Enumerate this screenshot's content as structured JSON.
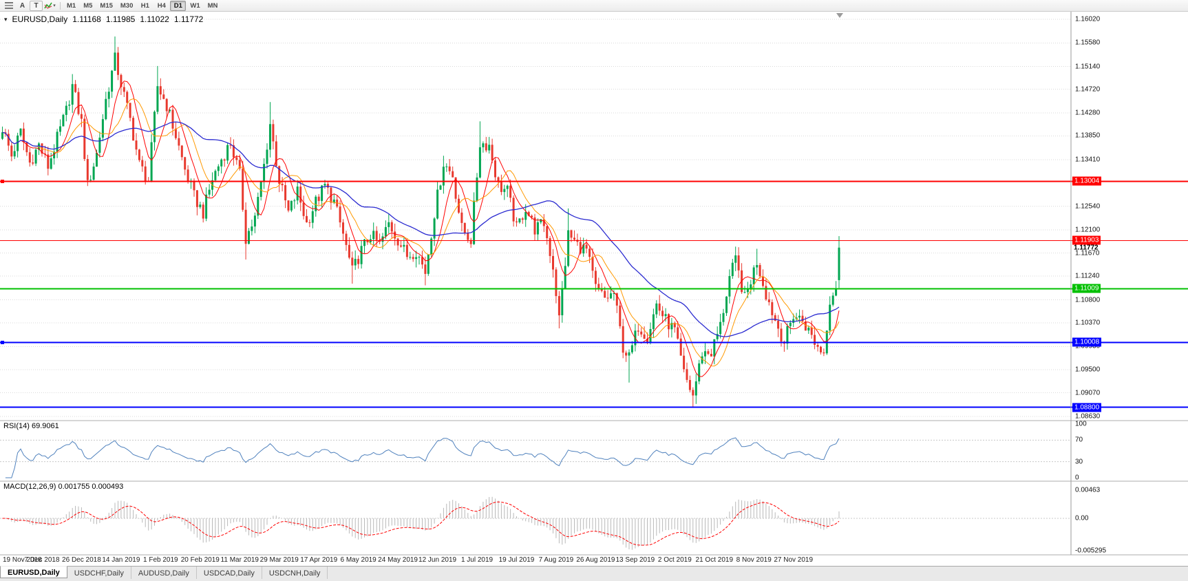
{
  "toolbar": {
    "a_button": "A",
    "t_button": "T",
    "timeframes": [
      "M1",
      "M5",
      "M15",
      "M30",
      "H1",
      "H4",
      "D1",
      "W1",
      "MN"
    ],
    "active_timeframe": "D1"
  },
  "chart": {
    "title": "EURUSD,Daily",
    "ohlc": {
      "open": "1.11168",
      "high": "1.11985",
      "low": "1.11022",
      "close": "1.11772"
    },
    "price_axis_labels": [
      "1.16020",
      "1.15580",
      "1.15140",
      "1.14720",
      "1.14280",
      "1.13850",
      "1.13410",
      "1.12540",
      "1.12100",
      "1.11670",
      "1.11240",
      "1.10800",
      "1.10370",
      "1.09930",
      "1.09500",
      "1.09070",
      "1.08630"
    ],
    "levels": [
      {
        "price": 1.13004,
        "label": "1.13004",
        "color": "#ff0000",
        "width": 2,
        "handle": true
      },
      {
        "price": 1.11903,
        "label": "1.11903",
        "color": "#ff0000",
        "width": 1,
        "handle": false
      },
      {
        "price": 1.11009,
        "label": "1.11009",
        "color": "#00c000",
        "width": 2,
        "handle": false
      },
      {
        "price": 1.10008,
        "label": "1.10008",
        "color": "#0000ff",
        "width": 2,
        "handle": true
      },
      {
        "price": 1.088,
        "label": "1.08800",
        "color": "#0000ff",
        "width": 2,
        "handle": false
      }
    ],
    "current_price": {
      "text": "1.11772",
      "price": 1.11772
    }
  },
  "chart_data": {
    "type": "candlestick",
    "symbol": "EURUSD",
    "timeframe": "Daily",
    "num_candles": 276,
    "label_step": 13,
    "x_labels": [
      "19 Nov 2018",
      "7 Dec 2018",
      "26 Dec 2018",
      "14 Jan 2019",
      "1 Feb 2019",
      "20 Feb 2019",
      "11 Mar 2019",
      "29 Mar 2019",
      "17 Apr 2019",
      "6 May 2019",
      "24 May 2019",
      "12 Jun 2019",
      "1 Jul 2019",
      "19 Jul 2019",
      "7 Aug 2019",
      "26 Aug 2019",
      "13 Sep 2019",
      "2 Oct 2019",
      "21 Oct 2019",
      "8 Nov 2019",
      "27 Nov 2019"
    ],
    "price_range": {
      "top": 1.1602,
      "bottom": 1.0863
    },
    "last_candle": {
      "open": 1.11168,
      "high": 1.11985,
      "low": 1.11022,
      "close": 1.11772
    },
    "anchors": [
      [
        0,
        1.14
      ],
      [
        3,
        1.1348
      ],
      [
        6,
        1.1392
      ],
      [
        9,
        1.1335
      ],
      [
        12,
        1.1368
      ],
      [
        15,
        1.1328
      ],
      [
        18,
        1.138
      ],
      [
        21,
        1.1432
      ],
      [
        23,
        1.1478
      ],
      [
        26,
        1.141
      ],
      [
        28,
        1.1292
      ],
      [
        31,
        1.1352
      ],
      [
        34,
        1.1452
      ],
      [
        37,
        1.1528
      ],
      [
        39,
        1.1482
      ],
      [
        42,
        1.1415
      ],
      [
        45,
        1.1332
      ],
      [
        48,
        1.1302
      ],
      [
        51,
        1.1478
      ],
      [
        54,
        1.1442
      ],
      [
        57,
        1.1385
      ],
      [
        60,
        1.1322
      ],
      [
        63,
        1.1272
      ],
      [
        66,
        1.1242
      ],
      [
        69,
        1.1305
      ],
      [
        72,
        1.1342
      ],
      [
        75,
        1.1372
      ],
      [
        78,
        1.1312
      ],
      [
        80,
        1.1195
      ],
      [
        83,
        1.1232
      ],
      [
        86,
        1.133
      ],
      [
        88,
        1.1408
      ],
      [
        91,
        1.1302
      ],
      [
        94,
        1.1242
      ],
      [
        97,
        1.1282
      ],
      [
        100,
        1.1222
      ],
      [
        103,
        1.1262
      ],
      [
        106,
        1.1292
      ],
      [
        109,
        1.1262
      ],
      [
        112,
        1.1202
      ],
      [
        115,
        1.1132
      ],
      [
        118,
        1.1172
      ],
      [
        121,
        1.1202
      ],
      [
        124,
        1.1182
      ],
      [
        127,
        1.1222
      ],
      [
        130,
        1.1192
      ],
      [
        133,
        1.1162
      ],
      [
        136,
        1.1172
      ],
      [
        139,
        1.1132
      ],
      [
        142,
        1.1242
      ],
      [
        145,
        1.1335
      ],
      [
        148,
        1.1312
      ],
      [
        151,
        1.1212
      ],
      [
        154,
        1.1192
      ],
      [
        157,
        1.1372
      ],
      [
        160,
        1.1368
      ],
      [
        163,
        1.1292
      ],
      [
        166,
        1.1282
      ],
      [
        169,
        1.1212
      ],
      [
        172,
        1.1252
      ],
      [
        175,
        1.1212
      ],
      [
        178,
        1.1222
      ],
      [
        181,
        1.1142
      ],
      [
        183,
        1.1045
      ],
      [
        186,
        1.1202
      ],
      [
        189,
        1.1182
      ],
      [
        192,
        1.1172
      ],
      [
        195,
        1.1102
      ],
      [
        198,
        1.1082
      ],
      [
        201,
        1.1092
      ],
      [
        204,
        1.0992
      ],
      [
        206,
        1.0972
      ],
      [
        209,
        1.1032
      ],
      [
        212,
        1.1012
      ],
      [
        215,
        1.1072
      ],
      [
        218,
        1.1042
      ],
      [
        221,
        1.1022
      ],
      [
        224,
        1.0942
      ],
      [
        227,
        1.0902
      ],
      [
        230,
        1.0982
      ],
      [
        233,
        1.0982
      ],
      [
        236,
        1.1032
      ],
      [
        239,
        1.1122
      ],
      [
        241,
        1.1152
      ],
      [
        244,
        1.1082
      ],
      [
        248,
        1.1152
      ],
      [
        251,
        1.1092
      ],
      [
        254,
        1.1042
      ],
      [
        257,
        1.1002
      ],
      [
        260,
        1.1052
      ],
      [
        263,
        1.1042
      ],
      [
        266,
        1.1012
      ],
      [
        268,
        1.0992
      ],
      [
        270,
        1.0982
      ],
      [
        272,
        1.1082
      ],
      [
        274,
        1.1105
      ],
      [
        275,
        1.1177
      ]
    ],
    "spikes": [
      {
        "i": 23,
        "high": 1.15
      },
      {
        "i": 37,
        "high": 1.157
      },
      {
        "i": 51,
        "high": 1.1515
      },
      {
        "i": 80,
        "low": 1.1155
      },
      {
        "i": 88,
        "high": 1.1448
      },
      {
        "i": 115,
        "low": 1.111
      },
      {
        "i": 139,
        "low": 1.1107
      },
      {
        "i": 145,
        "high": 1.1348
      },
      {
        "i": 157,
        "high": 1.1412
      },
      {
        "i": 183,
        "low": 1.1027
      },
      {
        "i": 186,
        "high": 1.125
      },
      {
        "i": 206,
        "low": 1.0926
      },
      {
        "i": 227,
        "low": 1.0879
      },
      {
        "i": 241,
        "high": 1.1179
      },
      {
        "i": 248,
        "high": 1.1175
      },
      {
        "i": 257,
        "low": 1.0989
      },
      {
        "i": 270,
        "low": 1.0981
      }
    ],
    "colors": {
      "up": "#00a651",
      "down": "#e8392e",
      "grid": "#d9d9d9"
    },
    "moving_averages": [
      {
        "period": 7,
        "color": "#ff0000",
        "width": 1
      },
      {
        "period": 12,
        "color": "#ff9900",
        "width": 1
      },
      {
        "period": 40,
        "color": "#2a2ad0",
        "width": 1.3
      }
    ]
  },
  "rsi": {
    "label": "RSI(14) 69.9061",
    "period": 14,
    "value": "69.9061",
    "color": "#4f81bd",
    "axis_labels": [
      {
        "v": 100,
        "t": "100"
      },
      {
        "v": 70,
        "t": "70"
      },
      {
        "v": 30,
        "t": "30"
      },
      {
        "v": 0,
        "t": "0"
      }
    ]
  },
  "macd": {
    "label": "MACD(12,26,9) 0.001755 0.000493",
    "fast": 12,
    "slow": 26,
    "signal": 9,
    "values": [
      "0.001755",
      "0.000493"
    ],
    "hist_color": "#b8b8b8",
    "signal_color": "#ff0000",
    "axis_labels": [
      {
        "v": 0.00463,
        "t": "0.00463"
      },
      {
        "v": 0,
        "t": "0.00"
      },
      {
        "v": -0.005295,
        "t": "-0.005295"
      }
    ]
  },
  "tabs": [
    {
      "label": "EURUSD,Daily",
      "active": true
    },
    {
      "label": "USDCHF,Daily",
      "active": false
    },
    {
      "label": "AUDUSD,Daily",
      "active": false
    },
    {
      "label": "USDCAD,Daily",
      "active": false
    },
    {
      "label": "USDCNH,Daily",
      "active": false
    }
  ]
}
